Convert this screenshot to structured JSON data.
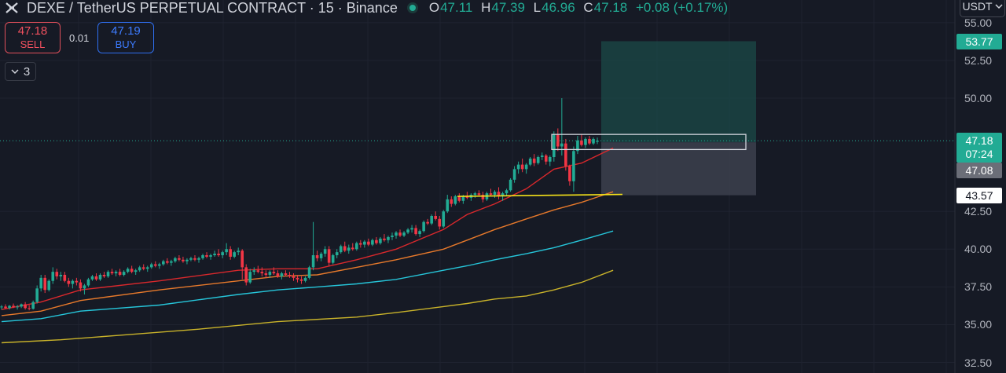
{
  "header": {
    "title": "DEXE / TetherUS PERPETUAL CONTRACT · 15 · Binance",
    "ohlc": [
      {
        "label": "O",
        "value": "47.11"
      },
      {
        "label": "H",
        "value": "47.39"
      },
      {
        "label": "L",
        "value": "46.96"
      },
      {
        "label": "C",
        "value": "47.18"
      }
    ],
    "change": "+0.08 (+0.17%)"
  },
  "trade": {
    "sell_price": "47.18",
    "sell_label": "SELL",
    "spread": "0.01",
    "buy_price": "47.19",
    "buy_label": "BUY"
  },
  "indicators_toggle": {
    "count": "3"
  },
  "currency_button": {
    "label": "USDT"
  },
  "price_tags": {
    "target": "53.77",
    "last_price": "47.18",
    "countdown": "07:24",
    "entry": "47.08",
    "stop": "43.57"
  },
  "colors": {
    "background": "#161a25",
    "up": "#22ab94",
    "down": "#f23645",
    "target_zone": "#1b4a47",
    "stop_zone": "#3e4250",
    "ma_red": "#d9282c",
    "ma_orange": "#e7792b",
    "ma_teal": "#26c6da",
    "ma_gold": "#c9b32a",
    "support_line": "#f5e219"
  },
  "chart_data": {
    "type": "candlestick",
    "y_axis": {
      "ticks": [
        "55.00",
        "52.50",
        "50.00",
        "42.50",
        "40.00",
        "37.50",
        "35.00",
        "32.50"
      ],
      "range": [
        31.8,
        56.5
      ]
    },
    "last_price": 47.18,
    "position": {
      "target": 53.77,
      "entry": 47.08,
      "stop": 43.57
    },
    "support_level": 43.6,
    "candles": [
      [
        36.15,
        36.3,
        36.0,
        36.2
      ],
      [
        36.2,
        36.35,
        36.05,
        36.1
      ],
      [
        36.1,
        36.3,
        36.0,
        36.25
      ],
      [
        36.25,
        36.4,
        36.1,
        36.15
      ],
      [
        36.15,
        36.3,
        36.0,
        36.2
      ],
      [
        36.2,
        36.4,
        36.1,
        36.35
      ],
      [
        36.35,
        36.5,
        36.0,
        36.1
      ],
      [
        36.1,
        36.3,
        35.95,
        36.05
      ],
      [
        36.05,
        36.6,
        36.0,
        36.5
      ],
      [
        36.5,
        37.6,
        36.4,
        37.4
      ],
      [
        37.4,
        38.3,
        37.2,
        38.1
      ],
      [
        38.1,
        38.3,
        37.1,
        37.3
      ],
      [
        37.3,
        38.0,
        37.2,
        37.9
      ],
      [
        37.9,
        38.8,
        37.7,
        38.5
      ],
      [
        38.5,
        38.7,
        38.0,
        38.2
      ],
      [
        38.2,
        38.5,
        37.9,
        38.3
      ],
      [
        38.3,
        38.5,
        37.8,
        37.9
      ],
      [
        37.9,
        38.1,
        37.5,
        37.7
      ],
      [
        37.7,
        38.0,
        37.4,
        37.9
      ],
      [
        37.9,
        38.1,
        37.6,
        37.8
      ],
      [
        37.8,
        38.0,
        37.2,
        37.4
      ],
      [
        37.4,
        37.7,
        37.0,
        37.6
      ],
      [
        37.6,
        38.1,
        37.5,
        38.0
      ],
      [
        38.0,
        38.3,
        37.9,
        38.2
      ],
      [
        38.2,
        38.4,
        37.9,
        38.0
      ],
      [
        38.0,
        38.4,
        37.9,
        38.3
      ],
      [
        38.3,
        38.5,
        38.1,
        38.2
      ],
      [
        38.2,
        38.6,
        38.1,
        38.5
      ],
      [
        38.5,
        38.7,
        38.3,
        38.4
      ],
      [
        38.4,
        38.6,
        38.2,
        38.5
      ],
      [
        38.5,
        38.7,
        38.2,
        38.3
      ],
      [
        38.3,
        38.6,
        38.2,
        38.5
      ],
      [
        38.5,
        38.8,
        38.4,
        38.7
      ],
      [
        38.7,
        38.9,
        38.4,
        38.5
      ],
      [
        38.5,
        38.7,
        38.3,
        38.6
      ],
      [
        38.6,
        38.9,
        38.5,
        38.8
      ],
      [
        38.8,
        39.0,
        38.6,
        38.7
      ],
      [
        38.7,
        38.9,
        38.5,
        38.8
      ],
      [
        38.8,
        39.1,
        38.7,
        39.0
      ],
      [
        39.0,
        39.2,
        38.8,
        38.9
      ],
      [
        38.9,
        39.1,
        38.7,
        39.0
      ],
      [
        39.0,
        39.3,
        38.9,
        39.2
      ],
      [
        39.2,
        39.4,
        39.0,
        39.1
      ],
      [
        39.1,
        39.3,
        38.9,
        39.2
      ],
      [
        39.2,
        39.5,
        39.1,
        39.4
      ],
      [
        39.4,
        39.6,
        39.2,
        39.3
      ],
      [
        39.3,
        39.5,
        39.1,
        39.2
      ],
      [
        39.2,
        39.4,
        39.0,
        39.3
      ],
      [
        39.3,
        39.5,
        39.2,
        39.4
      ],
      [
        39.4,
        39.6,
        39.2,
        39.3
      ],
      [
        39.3,
        39.5,
        39.1,
        39.4
      ],
      [
        39.4,
        39.7,
        39.3,
        39.6
      ],
      [
        39.6,
        39.8,
        39.4,
        39.5
      ],
      [
        39.5,
        39.7,
        39.3,
        39.6
      ],
      [
        39.6,
        39.9,
        39.5,
        39.7
      ],
      [
        39.7,
        40.0,
        39.5,
        39.6
      ],
      [
        39.6,
        39.9,
        39.4,
        39.8
      ],
      [
        39.8,
        40.4,
        39.6,
        40.0
      ],
      [
        40.0,
        40.2,
        39.3,
        39.5
      ],
      [
        39.5,
        39.9,
        39.4,
        39.8
      ],
      [
        39.8,
        40.1,
        39.6,
        39.9
      ],
      [
        39.9,
        40.0,
        38.0,
        38.8
      ],
      [
        38.8,
        39.0,
        37.6,
        37.8
      ],
      [
        37.8,
        38.7,
        37.7,
        38.5
      ],
      [
        38.5,
        38.8,
        38.3,
        38.6
      ],
      [
        38.6,
        38.9,
        38.4,
        38.5
      ],
      [
        38.5,
        38.8,
        38.2,
        38.4
      ],
      [
        38.4,
        38.6,
        38.1,
        38.3
      ],
      [
        38.3,
        38.6,
        38.1,
        38.5
      ],
      [
        38.5,
        38.8,
        38.3,
        38.4
      ],
      [
        38.4,
        38.6,
        38.1,
        38.2
      ],
      [
        38.2,
        38.5,
        38.0,
        38.4
      ],
      [
        38.4,
        38.6,
        38.2,
        38.3
      ],
      [
        38.3,
        38.5,
        38.1,
        38.2
      ],
      [
        38.2,
        38.4,
        37.9,
        38.1
      ],
      [
        38.1,
        38.3,
        37.8,
        38.0
      ],
      [
        38.0,
        38.2,
        37.7,
        37.9
      ],
      [
        37.9,
        38.2,
        37.8,
        38.1
      ],
      [
        38.1,
        38.9,
        38.0,
        38.8
      ],
      [
        38.8,
        41.8,
        38.6,
        39.6
      ],
      [
        39.6,
        39.9,
        39.2,
        39.4
      ],
      [
        39.4,
        39.8,
        39.2,
        39.7
      ],
      [
        39.7,
        40.2,
        39.5,
        40.0
      ],
      [
        40.0,
        40.2,
        38.9,
        39.1
      ],
      [
        39.1,
        39.7,
        39.0,
        39.6
      ],
      [
        39.6,
        40.0,
        39.4,
        39.8
      ],
      [
        39.8,
        40.3,
        39.7,
        40.2
      ],
      [
        40.2,
        40.5,
        39.8,
        39.9
      ],
      [
        39.9,
        40.3,
        39.7,
        40.1
      ],
      [
        40.1,
        40.4,
        39.9,
        40.0
      ],
      [
        40.0,
        40.5,
        39.9,
        40.4
      ],
      [
        40.4,
        40.6,
        40.1,
        40.3
      ],
      [
        40.3,
        40.6,
        40.1,
        40.5
      ],
      [
        40.5,
        40.7,
        40.2,
        40.3
      ],
      [
        40.3,
        40.7,
        40.2,
        40.6
      ],
      [
        40.6,
        40.8,
        40.3,
        40.4
      ],
      [
        40.4,
        40.8,
        40.3,
        40.7
      ],
      [
        40.7,
        41.0,
        40.5,
        40.6
      ],
      [
        40.6,
        40.9,
        40.4,
        40.8
      ],
      [
        40.8,
        41.1,
        40.6,
        40.9
      ],
      [
        40.9,
        41.2,
        40.7,
        41.1
      ],
      [
        41.1,
        41.3,
        40.8,
        40.9
      ],
      [
        40.9,
        41.2,
        40.8,
        41.1
      ],
      [
        41.1,
        41.4,
        41.0,
        41.3
      ],
      [
        41.3,
        41.6,
        41.1,
        41.4
      ],
      [
        41.4,
        41.6,
        40.9,
        41.0
      ],
      [
        41.0,
        41.3,
        40.8,
        41.2
      ],
      [
        41.2,
        41.9,
        41.1,
        41.8
      ],
      [
        41.8,
        42.0,
        41.6,
        41.7
      ],
      [
        41.7,
        42.3,
        41.6,
        42.2
      ],
      [
        42.2,
        42.5,
        41.9,
        42.0
      ],
      [
        42.0,
        42.2,
        41.3,
        41.5
      ],
      [
        41.5,
        42.6,
        41.4,
        42.5
      ],
      [
        42.5,
        43.6,
        42.4,
        43.3
      ],
      [
        43.3,
        43.5,
        42.8,
        43.0
      ],
      [
        43.0,
        43.6,
        42.9,
        43.5
      ],
      [
        43.5,
        43.7,
        43.1,
        43.2
      ],
      [
        43.2,
        43.6,
        43.0,
        43.5
      ],
      [
        43.5,
        43.8,
        43.3,
        43.4
      ],
      [
        43.4,
        43.7,
        43.2,
        43.6
      ],
      [
        43.6,
        43.8,
        43.4,
        43.7
      ],
      [
        43.7,
        43.9,
        43.5,
        43.6
      ],
      [
        43.6,
        43.8,
        43.1,
        43.3
      ],
      [
        43.3,
        43.8,
        43.2,
        43.7
      ],
      [
        43.7,
        44.0,
        43.5,
        43.6
      ],
      [
        43.6,
        43.9,
        43.4,
        43.8
      ],
      [
        43.8,
        44.1,
        43.3,
        43.5
      ],
      [
        43.5,
        43.8,
        43.2,
        43.7
      ],
      [
        43.7,
        44.0,
        43.5,
        43.9
      ],
      [
        43.9,
        44.7,
        43.8,
        44.6
      ],
      [
        44.6,
        45.5,
        44.4,
        45.3
      ],
      [
        45.3,
        45.8,
        45.0,
        45.6
      ],
      [
        45.6,
        46.0,
        45.1,
        45.3
      ],
      [
        45.3,
        45.7,
        45.0,
        45.6
      ],
      [
        45.6,
        46.1,
        45.5,
        46.0
      ],
      [
        46.0,
        46.3,
        45.5,
        45.7
      ],
      [
        45.7,
        46.2,
        45.6,
        46.1
      ],
      [
        46.1,
        46.4,
        45.9,
        46.2
      ],
      [
        46.2,
        46.3,
        45.6,
        45.8
      ],
      [
        45.8,
        46.2,
        45.5,
        46.1
      ],
      [
        46.1,
        47.8,
        45.8,
        47.6
      ],
      [
        47.6,
        48.0,
        46.5,
        46.8
      ],
      [
        46.8,
        50.0,
        46.2,
        47.0
      ],
      [
        47.0,
        47.3,
        45.2,
        45.5
      ],
      [
        45.5,
        45.6,
        44.2,
        44.5
      ],
      [
        44.5,
        46.8,
        43.8,
        46.5
      ],
      [
        46.5,
        47.5,
        46.3,
        47.2
      ],
      [
        47.2,
        47.6,
        46.8,
        46.9
      ],
      [
        46.9,
        47.4,
        46.7,
        47.3
      ],
      [
        47.3,
        47.5,
        46.9,
        47.0
      ],
      [
        47.0,
        47.4,
        46.9,
        47.3
      ],
      [
        47.11,
        47.39,
        46.96,
        47.18
      ]
    ],
    "moving_averages": [
      {
        "color": "#d9282c",
        "points": [
          [
            0,
            36.0
          ],
          [
            10,
            36.5
          ],
          [
            20,
            37.3
          ],
          [
            40,
            37.9
          ],
          [
            60,
            38.6
          ],
          [
            70,
            38.7
          ],
          [
            80,
            38.7
          ],
          [
            90,
            39.3
          ],
          [
            100,
            40.0
          ],
          [
            112,
            41.3
          ],
          [
            118,
            42.3
          ],
          [
            125,
            43.0
          ],
          [
            133,
            44.0
          ],
          [
            140,
            45.3
          ],
          [
            147,
            45.7
          ],
          [
            155,
            46.7
          ]
        ]
      },
      {
        "color": "#e7792b",
        "points": [
          [
            0,
            35.6
          ],
          [
            10,
            35.9
          ],
          [
            20,
            36.6
          ],
          [
            40,
            37.3
          ],
          [
            60,
            37.9
          ],
          [
            70,
            38.2
          ],
          [
            80,
            38.3
          ],
          [
            90,
            38.8
          ],
          [
            100,
            39.3
          ],
          [
            112,
            40.0
          ],
          [
            118,
            40.6
          ],
          [
            125,
            41.3
          ],
          [
            133,
            42.0
          ],
          [
            140,
            42.6
          ],
          [
            147,
            43.1
          ],
          [
            155,
            43.8
          ]
        ]
      },
      {
        "color": "#26c6da",
        "points": [
          [
            0,
            35.2
          ],
          [
            10,
            35.4
          ],
          [
            20,
            35.9
          ],
          [
            40,
            36.3
          ],
          [
            60,
            37.0
          ],
          [
            70,
            37.3
          ],
          [
            80,
            37.5
          ],
          [
            90,
            37.7
          ],
          [
            100,
            38.0
          ],
          [
            112,
            38.6
          ],
          [
            118,
            38.9
          ],
          [
            125,
            39.3
          ],
          [
            133,
            39.7
          ],
          [
            140,
            40.1
          ],
          [
            147,
            40.6
          ],
          [
            155,
            41.2
          ]
        ]
      },
      {
        "color": "#c9b32a",
        "points": [
          [
            0,
            33.8
          ],
          [
            15,
            34.0
          ],
          [
            30,
            34.3
          ],
          [
            50,
            34.7
          ],
          [
            70,
            35.2
          ],
          [
            90,
            35.5
          ],
          [
            100,
            35.8
          ],
          [
            112,
            36.2
          ],
          [
            118,
            36.4
          ],
          [
            125,
            36.7
          ],
          [
            133,
            36.9
          ],
          [
            140,
            37.3
          ],
          [
            147,
            37.8
          ],
          [
            155,
            38.6
          ]
        ]
      }
    ]
  }
}
